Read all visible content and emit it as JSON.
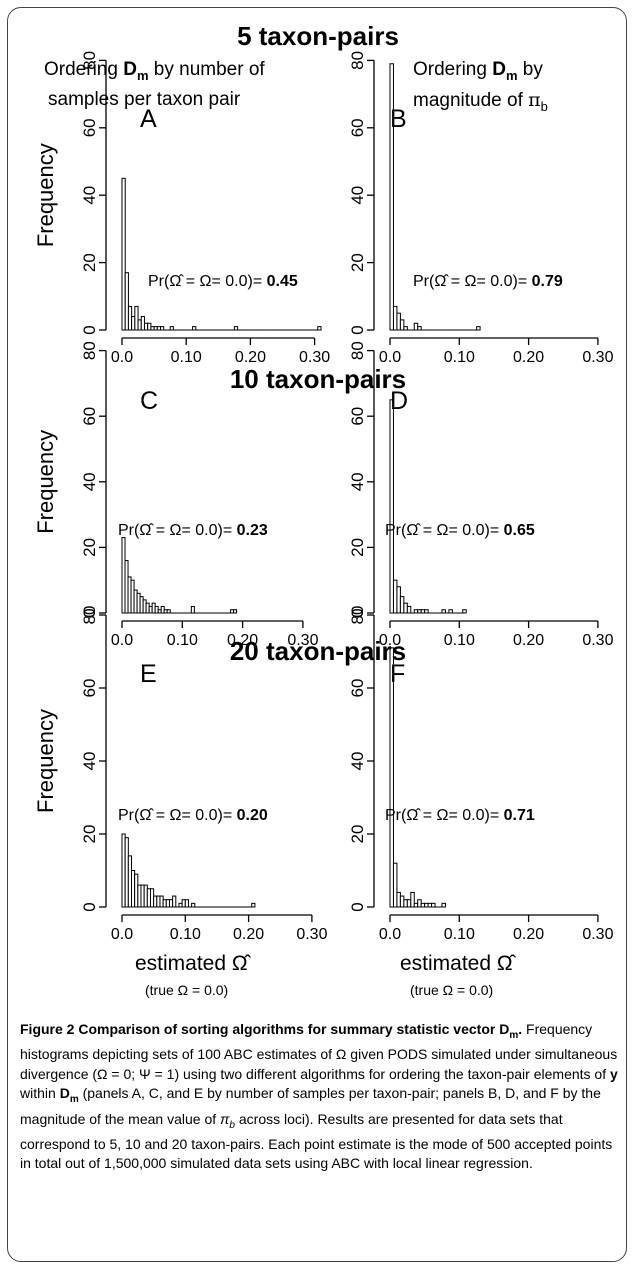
{
  "figure": {
    "row_titles": [
      "5 taxon-pairs",
      "10 taxon-pairs",
      "20 taxon-pairs"
    ],
    "col_headers": [
      {
        "line1_pre": "Ordering ",
        "line1_bold": "D",
        "line1_sub": "m",
        "line1_post": " by number of",
        "line2": "samples per taxon pair"
      },
      {
        "line1_pre": "Ordering ",
        "line1_bold": "D",
        "line1_sub": "m",
        "line1_post": " by",
        "line2_pre": "magnitude of  ",
        "line2_sym": "π",
        "line2_sub": "b"
      }
    ],
    "ylabel": "Frequency",
    "xlabel": "estimated Ω̂",
    "xlabel_sub": "(true Ω = 0.0)",
    "y_ticks": [
      "0",
      "20",
      "40",
      "60",
      "80"
    ],
    "x_ticks": [
      "0.0",
      "0.10",
      "0.20",
      "0.30"
    ],
    "annotation_prefix": "Pr(Ω̂ = Ω= 0.0)="
  },
  "chart_data": [
    {
      "type": "bar",
      "panel": "A",
      "group": "5 taxon-pairs",
      "ordering": "number of samples per taxon pair",
      "xlim": [
        0,
        0.3
      ],
      "ylim": [
        0,
        80
      ],
      "bin_width": 0.005,
      "ylabel": "Frequency",
      "pr_text": "0.45",
      "values": [
        45,
        17,
        7,
        4,
        7,
        3,
        4,
        2,
        2,
        1,
        1,
        1,
        1,
        0,
        0,
        1,
        0,
        0,
        0,
        0,
        0,
        0,
        1,
        0,
        0,
        0,
        0,
        0,
        0,
        0,
        0,
        0,
        0,
        0,
        0,
        1,
        0,
        0,
        0,
        0,
        0,
        0,
        0,
        0,
        0,
        0,
        0,
        0,
        0,
        0,
        0,
        0,
        0,
        0,
        0,
        0,
        0,
        0,
        0,
        0,
        0,
        1
      ]
    },
    {
      "type": "bar",
      "panel": "B",
      "group": "5 taxon-pairs",
      "ordering": "magnitude of π_b",
      "xlim": [
        0,
        0.3
      ],
      "ylim": [
        0,
        80
      ],
      "bin_width": 0.005,
      "pr_text": "0.79",
      "values": [
        79,
        7,
        5,
        3,
        1,
        0,
        0,
        2,
        1,
        0,
        0,
        0,
        0,
        0,
        0,
        0,
        0,
        0,
        0,
        0,
        0,
        0,
        0,
        0,
        0,
        1
      ]
    },
    {
      "type": "bar",
      "panel": "C",
      "group": "10 taxon-pairs",
      "ordering": "number of samples per taxon pair",
      "xlim": [
        0,
        0.3
      ],
      "ylim": [
        0,
        80
      ],
      "bin_width": 0.005,
      "ylabel": "Frequency",
      "pr_text": "0.23",
      "values": [
        23,
        16,
        11,
        10,
        7,
        6,
        5,
        4,
        3,
        2,
        3,
        2,
        1,
        2,
        1,
        1,
        0,
        0,
        0,
        0,
        0,
        0,
        0,
        2,
        0,
        0,
        0,
        0,
        0,
        0,
        0,
        0,
        0,
        0,
        0,
        0,
        1,
        1
      ]
    },
    {
      "type": "bar",
      "panel": "D",
      "group": "10 taxon-pairs",
      "ordering": "magnitude of π_b",
      "xlim": [
        0,
        0.3
      ],
      "ylim": [
        0,
        80
      ],
      "bin_width": 0.005,
      "pr_text": "0.65",
      "values": [
        65,
        10,
        8,
        5,
        3,
        2,
        0,
        1,
        1,
        1,
        1,
        0,
        0,
        0,
        0,
        1,
        0,
        1,
        0,
        0,
        0,
        1
      ]
    },
    {
      "type": "bar",
      "panel": "E",
      "group": "20 taxon-pairs",
      "ordering": "number of samples per taxon pair",
      "xlim": [
        0,
        0.3
      ],
      "ylim": [
        0,
        80
      ],
      "bin_width": 0.005,
      "ylabel": "Frequency",
      "xlabel": "estimated Ω̂",
      "pr_text": "0.20",
      "values": [
        20,
        19,
        14,
        10,
        9,
        6,
        6,
        6,
        5,
        5,
        3,
        3,
        3,
        2,
        2,
        2,
        3,
        0,
        1,
        2,
        2,
        0,
        1,
        0,
        0,
        0,
        0,
        0,
        0,
        0,
        0,
        0,
        0,
        0,
        0,
        0,
        0,
        0,
        0,
        0,
        0,
        1
      ]
    },
    {
      "type": "bar",
      "panel": "F",
      "group": "20 taxon-pairs",
      "ordering": "magnitude of π_b",
      "xlim": [
        0,
        0.3
      ],
      "ylim": [
        0,
        80
      ],
      "bin_width": 0.005,
      "xlabel": "estimated Ω̂",
      "pr_text": "0.71",
      "values": [
        71,
        12,
        4,
        3,
        2,
        2,
        4,
        1,
        2,
        1,
        1,
        1,
        1,
        0,
        0,
        1
      ]
    }
  ],
  "caption": {
    "title_pre": "Figure 2 Comparison of sorting algorithms for summary statistic vector ",
    "title_D": "D",
    "title_sub": "m",
    "title_post": ".",
    "p1": " Frequency histograms depicting sets of 100 ABC estimates of Ω given PODS simulated under simultaneous divergence (Ω = 0; Ψ = 1) using two different algorithms for ordering the taxon-pair elements of ",
    "y": "y",
    "p2": " within ",
    "D2": "D",
    "p3": " (panels A, C, and E by number of samples per taxon-pair; panels B, D, and F by the magnitude of the mean value of ",
    "pi": "π",
    "pi_sub": "b",
    "p4": " across loci). Results are presented for data sets that correspond to 5, 10 and 20 taxon-pairs. Each point estimate is the mode of 500 accepted points in total out of 1,500,000 simulated data sets using ABC with local linear regression."
  }
}
